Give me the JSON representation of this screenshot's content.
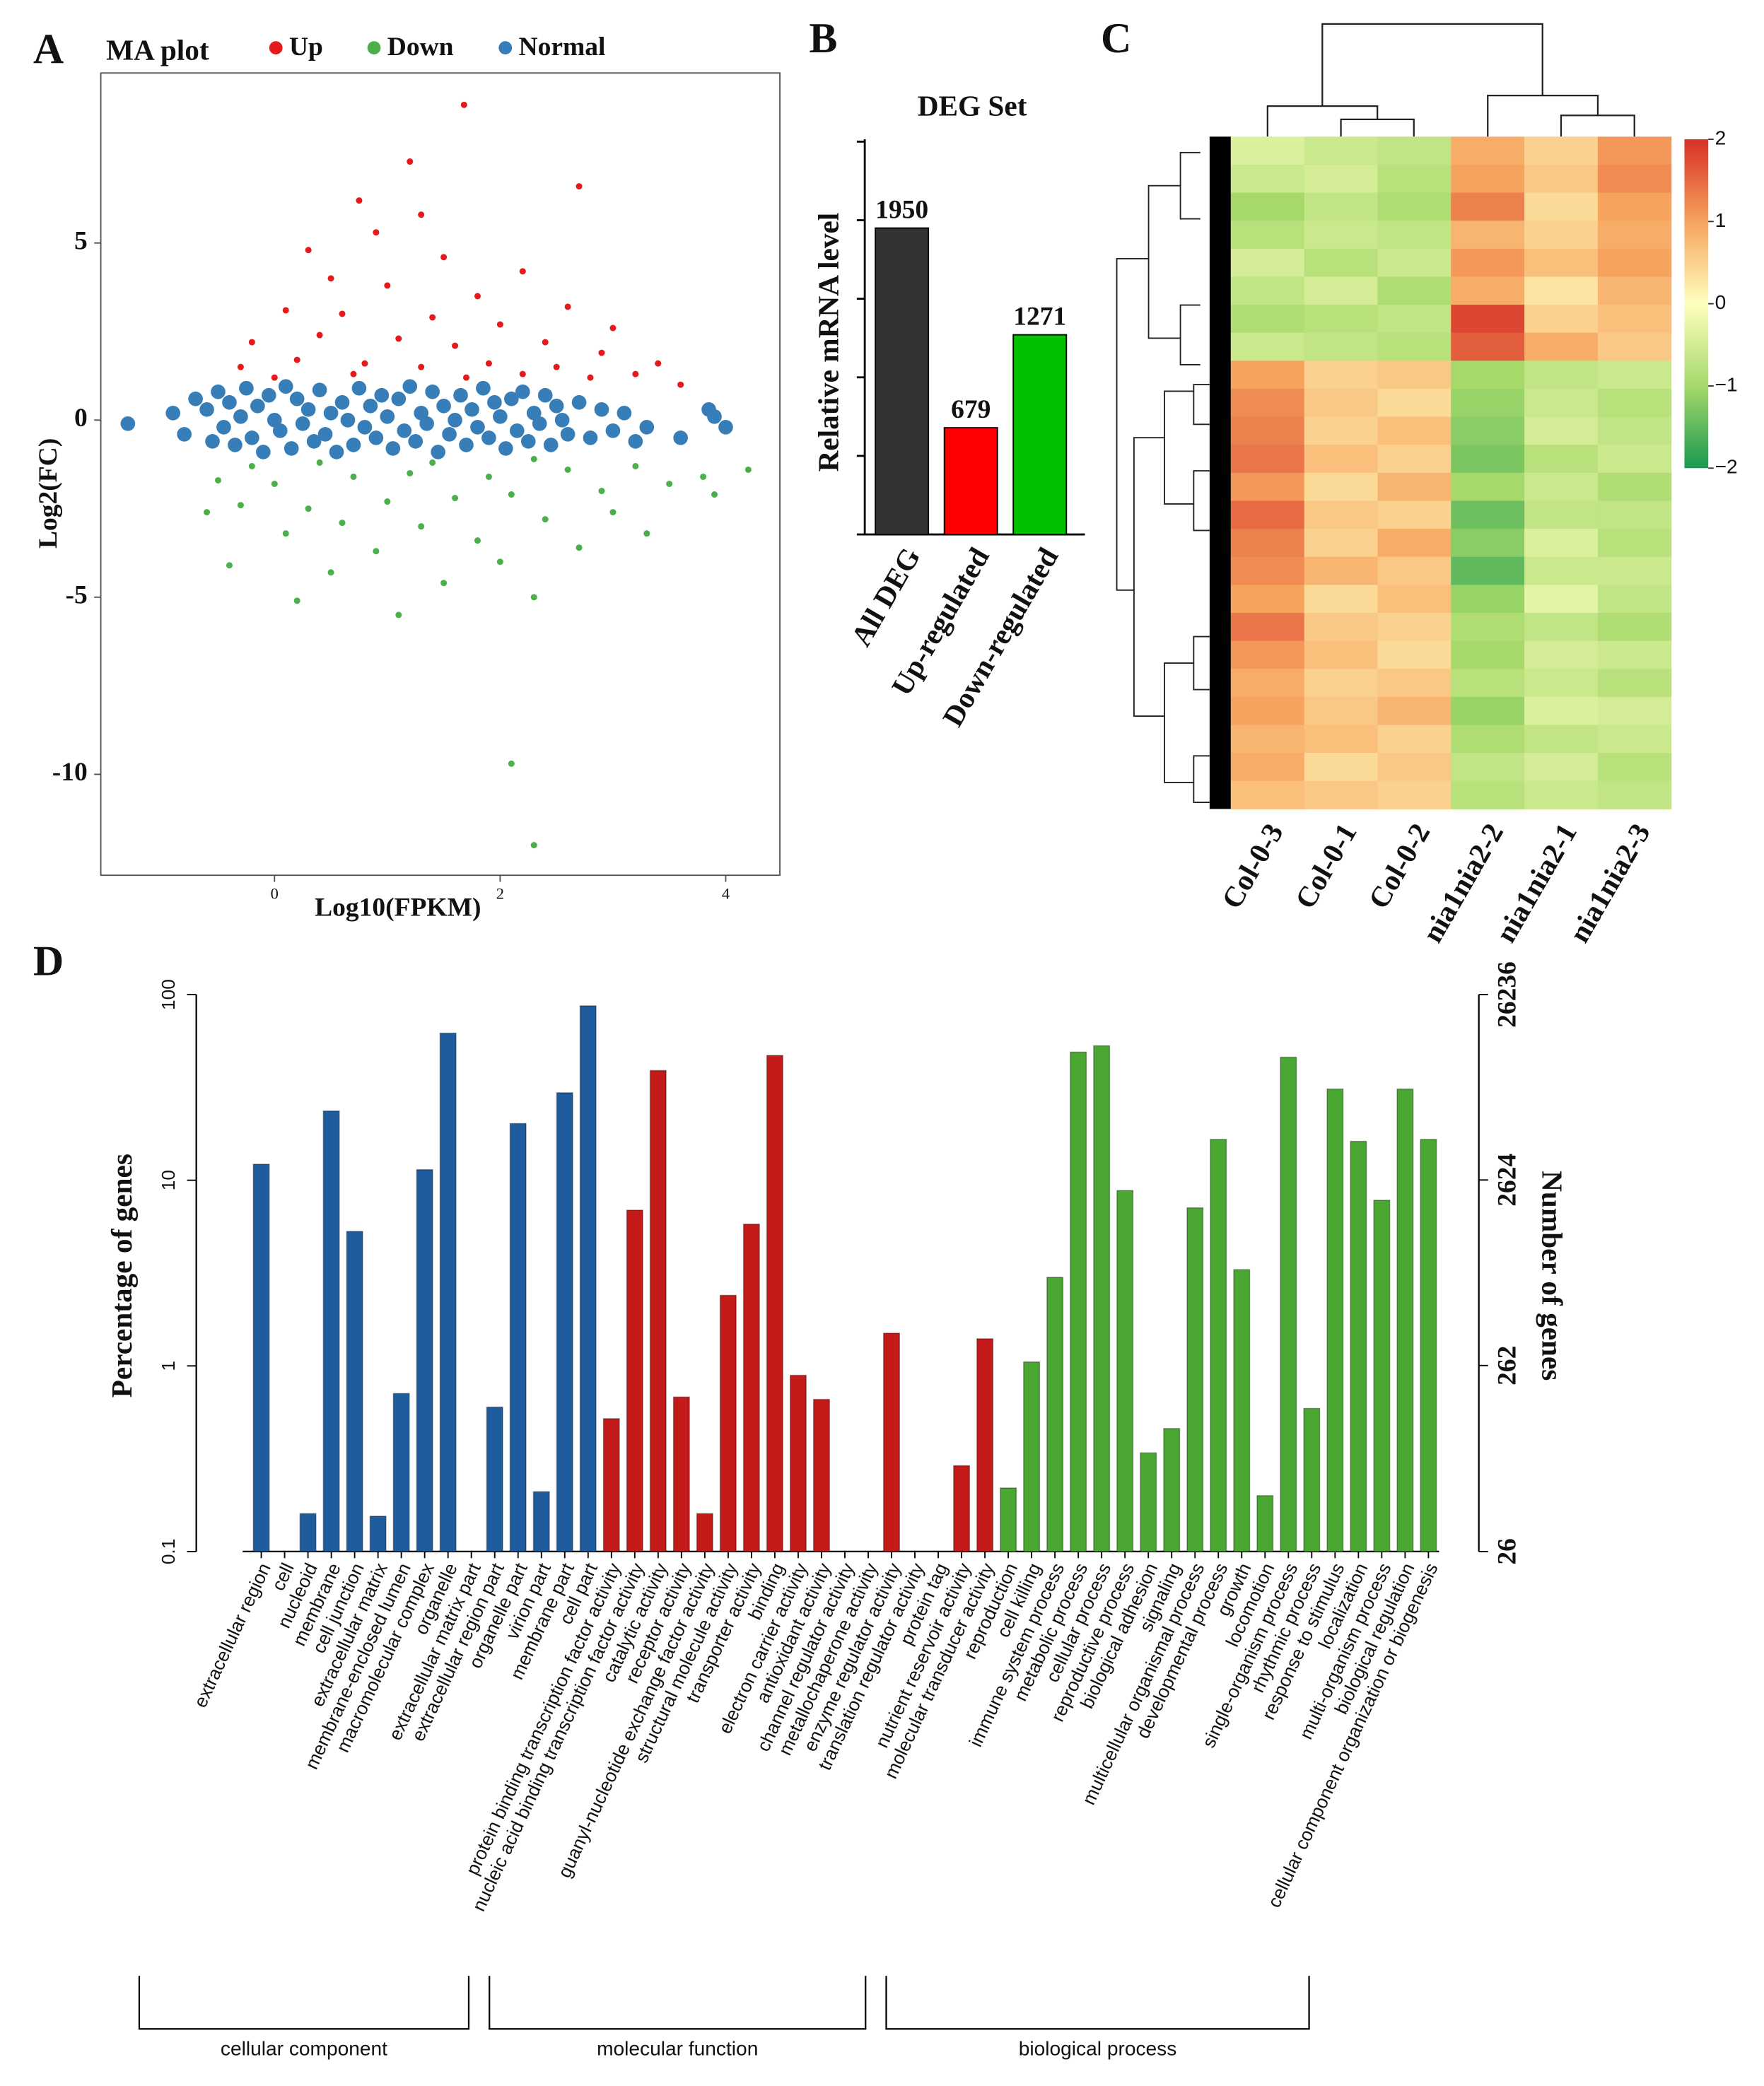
{
  "chart_data": [
    {
      "panel": "A",
      "type": "scatter",
      "title": "MA plot",
      "x_label": "Log10(FPKM)",
      "y_label": "Log2(FC)",
      "xlim": [
        -1.54,
        4.48
      ],
      "ylim": [
        -12.85,
        9.8
      ],
      "xticks": [
        0,
        2,
        4
      ],
      "yticks": [
        -10,
        -5,
        0,
        5
      ],
      "legend": "top",
      "series": [
        {
          "name": "Up",
          "color": "#e41a1c",
          "x": [
            1.68,
            1.2,
            2.7,
            0.75,
            1.3,
            0.3,
            0.9,
            1.5,
            2.2,
            0.5,
            1.0,
            1.8,
            2.6,
            0.1,
            0.6,
            1.4,
            2.0,
            3.0,
            -0.2,
            0.4,
            1.1,
            1.6,
            2.4,
            2.9,
            3.4,
            -0.3,
            0.2,
            0.8,
            1.3,
            1.9,
            2.5,
            3.2,
            0.0,
            0.7,
            1.7,
            2.2,
            2.8,
            3.6
          ],
          "y": [
            8.9,
            7.3,
            6.6,
            6.2,
            5.8,
            4.8,
            5.3,
            4.6,
            4.2,
            4.0,
            3.8,
            3.5,
            3.2,
            3.1,
            3.0,
            2.9,
            2.7,
            2.6,
            2.2,
            2.4,
            2.3,
            2.1,
            2.2,
            1.9,
            1.6,
            1.5,
            1.7,
            1.6,
            1.5,
            1.6,
            1.5,
            1.3,
            1.2,
            1.3,
            1.2,
            1.3,
            1.2,
            1.0
          ]
        },
        {
          "name": "Down",
          "color": "#4daf4a",
          "x": [
            2.1,
            2.3,
            0.2,
            1.1,
            2.3,
            3.3,
            3.9,
            4.2,
            -0.4,
            0.5,
            1.5,
            2.0,
            0.9,
            1.8,
            2.7,
            0.1,
            0.6,
            1.3,
            2.4,
            3.0,
            -0.3,
            0.3,
            1.0,
            1.6,
            2.1,
            2.9,
            3.5,
            -0.5,
            0.0,
            0.7,
            1.2,
            1.9,
            2.6,
            3.2,
            -0.2,
            0.4,
            1.4,
            2.3,
            3.8,
            -0.6
          ],
          "y": [
            -9.7,
            -12.0,
            -5.1,
            -5.5,
            -5.0,
            -3.2,
            -2.1,
            -1.4,
            -4.1,
            -4.3,
            -4.6,
            -4.0,
            -3.7,
            -3.4,
            -3.6,
            -3.2,
            -2.9,
            -3.0,
            -2.8,
            -2.6,
            -2.4,
            -2.5,
            -2.3,
            -2.2,
            -2.1,
            -2.0,
            -1.8,
            -1.7,
            -1.8,
            -1.6,
            -1.5,
            -1.6,
            -1.4,
            -1.3,
            -1.3,
            -1.2,
            -1.2,
            -1.1,
            -1.6,
            -2.6
          ]
        },
        {
          "name": "Normal",
          "color": "#377eb8",
          "x": [
            -1.3,
            -0.9,
            -0.8,
            -0.7,
            -0.6,
            -0.55,
            -0.5,
            -0.45,
            -0.4,
            -0.35,
            -0.3,
            -0.25,
            -0.2,
            -0.15,
            -0.1,
            -0.05,
            0.0,
            0.05,
            0.1,
            0.15,
            0.2,
            0.25,
            0.3,
            0.35,
            0.4,
            0.45,
            0.5,
            0.55,
            0.6,
            0.65,
            0.7,
            0.75,
            0.8,
            0.85,
            0.9,
            0.95,
            1.0,
            1.05,
            1.1,
            1.15,
            1.2,
            1.25,
            1.3,
            1.35,
            1.4,
            1.45,
            1.5,
            1.55,
            1.6,
            1.65,
            1.7,
            1.75,
            1.8,
            1.85,
            1.9,
            1.95,
            2.0,
            2.05,
            2.1,
            2.15,
            2.2,
            2.25,
            2.3,
            2.35,
            2.4,
            2.45,
            2.5,
            2.6,
            2.7,
            2.8,
            2.9,
            3.0,
            3.1,
            3.2,
            3.3,
            3.6,
            3.85,
            3.9,
            4.0,
            2.55
          ],
          "y": [
            -0.1,
            0.2,
            -0.4,
            0.6,
            0.3,
            -0.6,
            0.8,
            -0.2,
            0.5,
            -0.7,
            0.1,
            0.9,
            -0.5,
            0.4,
            -0.9,
            0.7,
            0.0,
            -0.3,
            0.95,
            -0.8,
            0.6,
            -0.1,
            0.3,
            -0.6,
            0.85,
            -0.4,
            0.2,
            -0.9,
            0.5,
            0.0,
            -0.7,
            0.9,
            -0.2,
            0.4,
            -0.5,
            0.7,
            0.1,
            -0.8,
            0.6,
            -0.3,
            0.95,
            -0.6,
            0.2,
            -0.1,
            0.8,
            -0.9,
            0.4,
            -0.4,
            0.0,
            0.7,
            -0.7,
            0.3,
            -0.2,
            0.9,
            -0.5,
            0.5,
            0.1,
            -0.8,
            0.6,
            -0.3,
            0.8,
            -0.6,
            0.2,
            -0.1,
            0.7,
            -0.7,
            0.4,
            -0.4,
            0.5,
            -0.5,
            0.3,
            -0.3,
            0.2,
            -0.6,
            -0.2,
            -0.5,
            0.3,
            0.1,
            -0.2,
            0.0
          ]
        }
      ]
    },
    {
      "panel": "B",
      "type": "bar",
      "title": "DEG Set",
      "y_label": "Relative mRNA level",
      "categories": [
        "All DEG",
        "Up-regulated",
        "Down-regulated"
      ],
      "values": [
        1950,
        679,
        1271
      ],
      "colors": [
        "#333333",
        "#ff0000",
        "#00c000"
      ],
      "ylim": [
        0,
        2515
      ],
      "yticks": [
        0,
        500,
        1000,
        1500,
        2000,
        2500
      ],
      "show_ytick_labels": false
    },
    {
      "panel": "C",
      "type": "heatmap",
      "columns": [
        "Col-0-3",
        "Col-0-1",
        "Col-0-2",
        "nia1nia2-2",
        "nia1nia2-1",
        "nia1nia2-3"
      ],
      "values": [
        [
          -0.4,
          -0.6,
          -0.7,
          0.9,
          0.5,
          1.1
        ],
        [
          -0.6,
          -0.5,
          -0.8,
          1.0,
          0.6,
          1.2
        ],
        [
          -1.0,
          -0.7,
          -0.9,
          1.3,
          0.4,
          1.0
        ],
        [
          -0.8,
          -0.6,
          -0.7,
          0.8,
          0.5,
          0.9
        ],
        [
          -0.5,
          -0.8,
          -0.6,
          1.1,
          0.7,
          1.0
        ],
        [
          -0.7,
          -0.5,
          -0.9,
          0.9,
          0.3,
          0.8
        ],
        [
          -0.9,
          -0.8,
          -0.7,
          1.8,
          0.5,
          0.7
        ],
        [
          -0.6,
          -0.7,
          -0.8,
          1.6,
          0.9,
          0.6
        ],
        [
          1.0,
          0.5,
          0.6,
          -1.0,
          -0.7,
          -0.6
        ],
        [
          1.2,
          0.6,
          0.4,
          -1.1,
          -0.6,
          -0.8
        ],
        [
          1.3,
          0.5,
          0.7,
          -1.2,
          -0.5,
          -0.7
        ],
        [
          1.4,
          0.7,
          0.5,
          -1.3,
          -0.8,
          -0.6
        ],
        [
          1.1,
          0.4,
          0.8,
          -1.0,
          -0.6,
          -0.9
        ],
        [
          1.5,
          0.6,
          0.5,
          -1.4,
          -0.7,
          -0.7
        ],
        [
          1.3,
          0.5,
          0.9,
          -1.2,
          -0.4,
          -0.8
        ],
        [
          1.2,
          0.8,
          0.6,
          -1.5,
          -0.6,
          -0.6
        ],
        [
          1.0,
          0.4,
          0.7,
          -1.1,
          -0.3,
          -0.7
        ],
        [
          1.4,
          0.6,
          0.5,
          -0.9,
          -0.7,
          -0.9
        ],
        [
          1.1,
          0.7,
          0.4,
          -1.0,
          -0.5,
          -0.6
        ],
        [
          0.9,
          0.5,
          0.6,
          -0.8,
          -0.6,
          -0.8
        ],
        [
          1.0,
          0.6,
          0.8,
          -1.1,
          -0.4,
          -0.5
        ],
        [
          0.8,
          0.7,
          0.5,
          -0.9,
          -0.7,
          -0.6
        ],
        [
          0.9,
          0.4,
          0.6,
          -0.7,
          -0.5,
          -0.8
        ],
        [
          0.7,
          0.6,
          0.5,
          -0.8,
          -0.6,
          -0.7
        ]
      ],
      "zlim": [
        -2,
        2
      ],
      "colors": [
        "#1a9850",
        "#a6d96a",
        "#ffffbf",
        "#f6a35e",
        "#d73027"
      ],
      "colorbar_ticks": [
        2,
        1,
        0,
        {
          "value": -1,
          "label": "−1"
        },
        {
          "value": -2,
          "label": "−2"
        }
      ]
    },
    {
      "panel": "D",
      "type": "bar",
      "log_scale": true,
      "y_label": "Percentage of genes",
      "y2_label": "Number of genes",
      "ylim": [
        0.1,
        100
      ],
      "yticks": [
        0.1,
        1,
        10,
        100
      ],
      "y2lim": [
        26,
        26236
      ],
      "y2ticks": [
        26,
        262,
        2624,
        26236
      ],
      "series": [
        {
          "name": "cellular component",
          "color": "#1f5c9e",
          "categories": [
            "extracellular region",
            "cell",
            "nucleoid",
            "membrane",
            "cell junction",
            "extracellular matrix",
            "membrane-enclosed lumen",
            "macromolecular complex",
            "organelle",
            "extracellular matrix part",
            "extracellular region part",
            "organelle part",
            "virion part",
            "membrane part",
            "cell part"
          ],
          "values": [
            12.2,
            null,
            0.16,
            23.6,
            5.3,
            0.155,
            0.71,
            11.4,
            62,
            null,
            0.6,
            20.2,
            0.21,
            29.6,
            87
          ]
        },
        {
          "name": "molecular function",
          "color": "#c41a1a",
          "categories": [
            "protein binding transcription factor activity",
            "nucleic acid binding transcription factor activity",
            "catalytic activity",
            "receptor activity",
            "guanyl-nucleotide exchange factor activity",
            "structural molecule activity",
            "transporter activity",
            "binding",
            "electron carrier activity",
            "antioxidant activity",
            "channel regulator activity",
            "metallochaperone activity",
            "enzyme regulator activity",
            "translation regulator activity",
            "protein tag",
            "nutrient reservoir activity",
            "molecular transducer activity"
          ],
          "values": [
            0.52,
            6.9,
            39,
            0.68,
            0.16,
            2.4,
            5.8,
            47,
            0.89,
            0.66,
            null,
            null,
            1.5,
            null,
            null,
            0.29,
            1.4
          ]
        },
        {
          "name": "biological process",
          "color": "#4aa832",
          "categories": [
            "reproduction",
            "cell killing",
            "immune system process",
            "metabolic process",
            "cellular process",
            "reproductive process",
            "biological adhesion",
            "signaling",
            "multicellular organismal process",
            "developmental process",
            "growth",
            "locomotion",
            "single-organism process",
            "rhythmic process",
            "response to stimulus",
            "localization",
            "multi-organism process",
            "biological regulation",
            "cellular component organization or biogenesis"
          ],
          "values": [
            0.22,
            1.05,
            3.0,
            49,
            53,
            8.8,
            0.34,
            0.46,
            7.1,
            16.6,
            3.3,
            0.2,
            46,
            0.59,
            31,
            16.2,
            7.8,
            31,
            16.6
          ]
        }
      ]
    }
  ]
}
